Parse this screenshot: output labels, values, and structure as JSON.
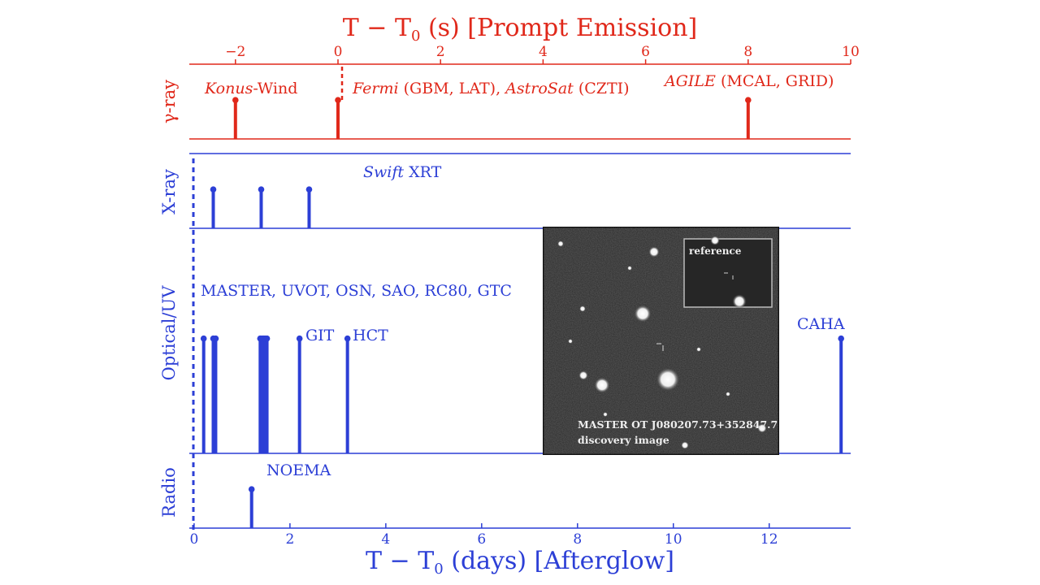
{
  "chart_data": {
    "type": "timeline",
    "colors": {
      "gamma": "#e0281a",
      "afterglow": "#2c3fd6"
    },
    "top_axis": {
      "title_main": "T − T",
      "title_sub": "0",
      "title_rest": " (s) [Prompt Emission]",
      "xlim": [
        -2.9,
        10
      ],
      "ticks": [
        -2,
        0,
        2,
        4,
        6,
        8,
        10
      ],
      "tick_labels": [
        "−2",
        "0",
        "2",
        "4",
        "6",
        "8",
        "10"
      ]
    },
    "bottom_axis": {
      "title_main": "T − T",
      "title_sub": "0",
      "title_rest": " (days) [Afterglow]",
      "xlim": [
        -0.1,
        13.7
      ],
      "ticks": [
        0,
        2,
        4,
        6,
        8,
        10,
        12
      ],
      "tick_labels": [
        "0",
        "2",
        "4",
        "6",
        "8",
        "10",
        "12"
      ]
    },
    "panels": [
      {
        "id": "gamma",
        "ylabel": "γ-ray",
        "axis": "top",
        "trigger_line": true,
        "events": [
          -2.0,
          0.0,
          8.0
        ],
        "stem_height": 0.52,
        "annotations": [
          {
            "italic": "Konus",
            "text": "-Wind"
          },
          {
            "italic": "Fermi",
            "text": " (GBM, LAT), ",
            "italic2": "AstroSat",
            "text2": " (CZTI)"
          },
          {
            "italic": "AGILE",
            "text": " (MCAL, GRID)"
          }
        ]
      },
      {
        "id": "xray",
        "ylabel": "X-ray",
        "axis": "bottom",
        "trigger_line": true,
        "events": [
          0.4,
          1.4,
          2.4
        ],
        "stem_height": 0.52,
        "annotations": [
          {
            "italic": "Swift",
            "text": " XRT"
          }
        ]
      },
      {
        "id": "optical",
        "ylabel": "Optical/UV",
        "axis": "bottom",
        "trigger_line": true,
        "events": [
          0.2,
          0.4,
          0.45,
          1.38,
          1.42,
          1.45,
          1.48,
          1.52,
          2.2,
          3.2,
          13.5
        ],
        "stem_height": 0.51,
        "annotations": [
          {
            "text": "MASTER, UVOT, OSN, SAO, RC80, GTC"
          },
          {
            "text": "GIT"
          },
          {
            "text": "HCT"
          },
          {
            "text": "CAHA"
          }
        ]
      },
      {
        "id": "radio",
        "ylabel": "Radio",
        "axis": "bottom",
        "trigger_line": true,
        "events": [
          1.2
        ],
        "stem_height": 0.52,
        "annotations": [
          {
            "text": "NOEMA"
          }
        ]
      }
    ],
    "inset": {
      "caption_line1": "MASTER OT J080207.73+352847.7",
      "caption_line2": "discovery image",
      "reference_label": "reference"
    }
  }
}
